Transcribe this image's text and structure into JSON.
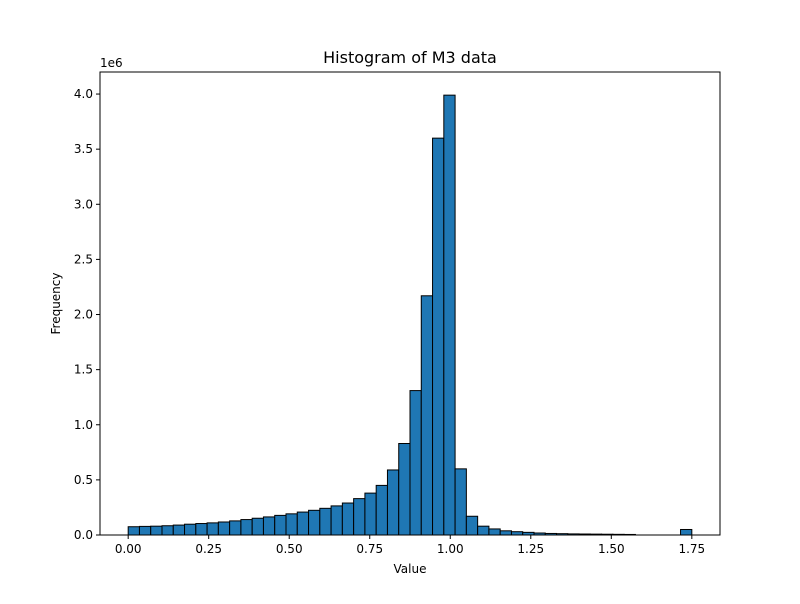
{
  "chart_data": {
    "type": "bar",
    "title": "Histogram of M3 data",
    "xlabel": "Value",
    "ylabel": "Frequency",
    "y_offset_label": "1e6",
    "y_scale": 1000000,
    "bin_width": 0.035,
    "x_start": 0.0,
    "xlim": [
      -0.0875,
      1.8375
    ],
    "ylim": [
      0,
      4200000
    ],
    "x_ticks": [
      0.0,
      0.25,
      0.5,
      0.75,
      1.0,
      1.25,
      1.5,
      1.75
    ],
    "x_tick_labels": [
      "0.00",
      "0.25",
      "0.50",
      "0.75",
      "1.00",
      "1.25",
      "1.50",
      "1.75"
    ],
    "y_ticks": [
      0,
      500000,
      1000000,
      1500000,
      2000000,
      2500000,
      3000000,
      3500000,
      4000000
    ],
    "y_tick_labels": [
      "0.0",
      "0.5",
      "1.0",
      "1.5",
      "2.0",
      "2.5",
      "3.0",
      "3.5",
      "4.0"
    ],
    "bar_color": "#1f77b4",
    "edge_color": "#000000",
    "grid": false,
    "values": [
      75000,
      78000,
      80000,
      84000,
      90000,
      98000,
      104000,
      110000,
      118000,
      128000,
      140000,
      152000,
      164000,
      178000,
      192000,
      208000,
      224000,
      242000,
      264000,
      290000,
      330000,
      380000,
      450000,
      590000,
      830000,
      1310000,
      2170000,
      3600000,
      3990000,
      600000,
      170000,
      80000,
      55000,
      38000,
      30000,
      24000,
      18000,
      14000,
      12000,
      10000,
      9000,
      8000,
      7000,
      6000,
      5000,
      0,
      0,
      0,
      0,
      50000
    ]
  }
}
